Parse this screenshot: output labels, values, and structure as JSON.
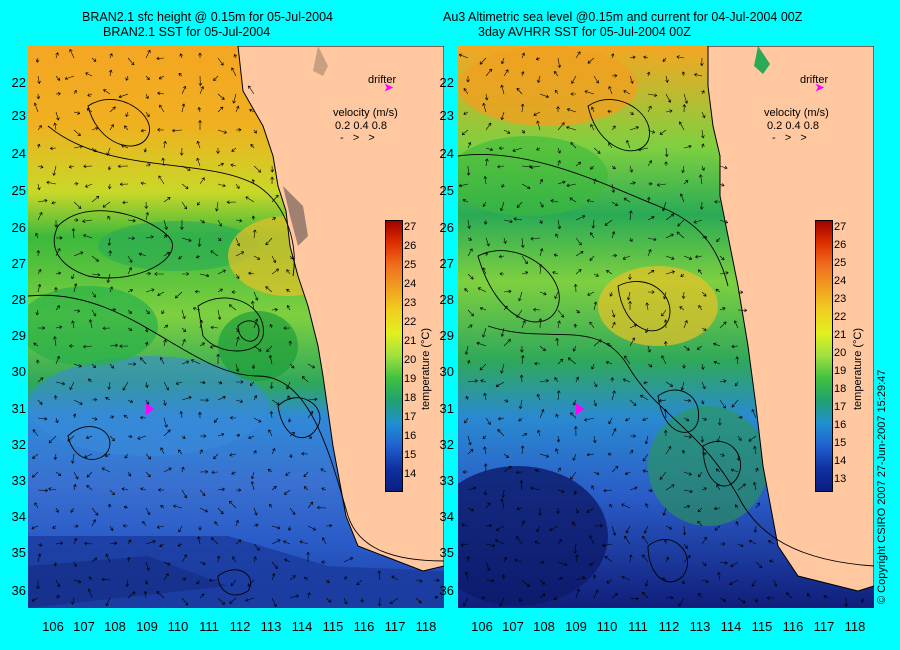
{
  "titles": {
    "left_line1": "BRAN2.1 sfc height @ 0.15m for 05-Jul-2004",
    "left_line2": "BRAN2.1 SST for 05-Jul-2004",
    "right_line1": "Au3 Altimetric sea level  @0.15m and current for 04-Jul-2004 00Z",
    "right_line2": "3day AVHRR SST for 05-Jul-2004 00Z"
  },
  "axes": {
    "latitudes": [
      "22",
      "23",
      "24",
      "25",
      "26",
      "27",
      "28",
      "29",
      "30",
      "31",
      "32",
      "33",
      "34",
      "35",
      "36"
    ],
    "longitudes": [
      "106",
      "107",
      "108",
      "109",
      "110",
      "111",
      "112",
      "113",
      "114",
      "115",
      "116",
      "117",
      "118"
    ]
  },
  "legend": {
    "drifter_label": "drifter",
    "velocity_label": "velocity (m/s)",
    "velocity_values": "0.2 0.4 0.8"
  },
  "colorbar_left": {
    "ticks": [
      "27",
      "26",
      "25",
      "24",
      "23",
      "22",
      "21",
      "20",
      "19",
      "18",
      "17",
      "16",
      "15",
      "14"
    ],
    "label": "temperature (°C)"
  },
  "colorbar_right": {
    "ticks": [
      "27",
      "26",
      "25",
      "24",
      "23",
      "22",
      "21",
      "20",
      "19",
      "18",
      "17",
      "16",
      "15",
      "14",
      "13"
    ],
    "label": "temperature (°C)"
  },
  "copyright": "© Copyright CSIRO 2007    27-Jun-2007 15:29:47",
  "colors": {
    "background": "#00ffff",
    "land": "#ffc8a0",
    "drifter": "#ff00ff"
  }
}
